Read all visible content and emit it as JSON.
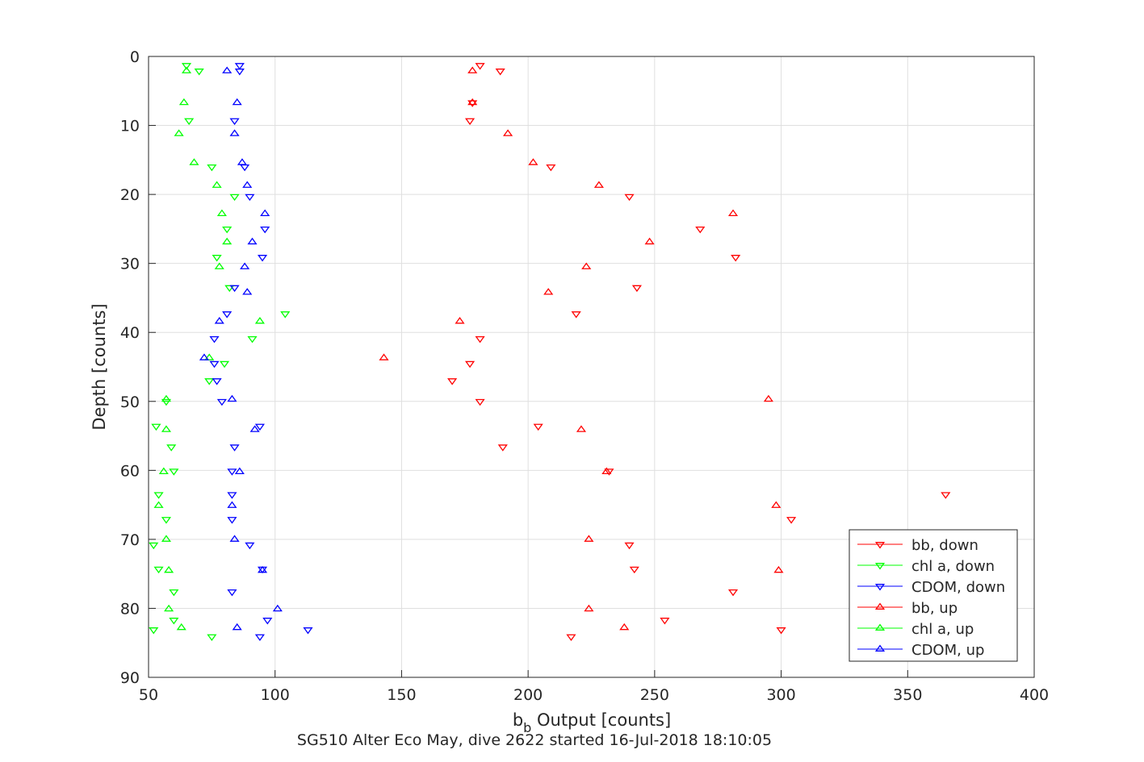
{
  "chart_data": {
    "type": "scatter",
    "xlabel_main": "b",
    "xlabel_sub": "b",
    "xlabel_rest": " Output [counts]",
    "ylabel": "Depth [counts]",
    "subtitle": "SG510 Alter Eco May, dive 2622 started 16-Jul-2018 18:10:05",
    "xlim": [
      50,
      400
    ],
    "ylim": [
      0,
      90
    ],
    "y_reversed": true,
    "xticks": [
      50,
      100,
      150,
      200,
      250,
      300,
      350,
      400
    ],
    "yticks": [
      0,
      10,
      20,
      30,
      40,
      50,
      60,
      70,
      80,
      90
    ],
    "grid": true,
    "legend_position": "bottom-right",
    "series": [
      {
        "name": "bb, down",
        "color": "#ff0000",
        "marker": "triangle-down",
        "points": [
          [
            181,
            1.3
          ],
          [
            189,
            2.1
          ],
          [
            178,
            6.7
          ],
          [
            177,
            9.3
          ],
          [
            209,
            16.0
          ],
          [
            240,
            20.3
          ],
          [
            268,
            25.0
          ],
          [
            282,
            29.1
          ],
          [
            243,
            33.5
          ],
          [
            219,
            37.3
          ],
          [
            181,
            40.9
          ],
          [
            177,
            44.5
          ],
          [
            170,
            47.0
          ],
          [
            181,
            50.0
          ],
          [
            204,
            53.6
          ],
          [
            190,
            56.6
          ],
          [
            232,
            60.1
          ],
          [
            365,
            63.5
          ],
          [
            304,
            67.1
          ],
          [
            240,
            70.8
          ],
          [
            242,
            74.3
          ],
          [
            281,
            77.6
          ],
          [
            254,
            81.7
          ],
          [
            300,
            83.1
          ],
          [
            217,
            84.1
          ]
        ]
      },
      {
        "name": "chl a, down",
        "color": "#00ff00",
        "marker": "triangle-down",
        "points": [
          [
            65,
            1.3
          ],
          [
            70,
            2.1
          ],
          [
            66,
            9.3
          ],
          [
            75,
            16.0
          ],
          [
            84,
            20.3
          ],
          [
            81,
            25.0
          ],
          [
            77,
            29.1
          ],
          [
            82,
            33.5
          ],
          [
            104,
            37.3
          ],
          [
            91,
            40.9
          ],
          [
            80,
            44.5
          ],
          [
            74,
            47.0
          ],
          [
            57,
            50.0
          ],
          [
            53,
            53.6
          ],
          [
            59,
            56.6
          ],
          [
            60,
            60.1
          ],
          [
            54,
            63.5
          ],
          [
            57,
            67.1
          ],
          [
            52,
            70.8
          ],
          [
            54,
            74.3
          ],
          [
            60,
            77.6
          ],
          [
            60,
            81.7
          ],
          [
            52,
            83.1
          ],
          [
            75,
            84.1
          ]
        ]
      },
      {
        "name": "CDOM, down",
        "color": "#0000ff",
        "marker": "triangle-down",
        "points": [
          [
            86,
            1.3
          ],
          [
            86,
            2.1
          ],
          [
            84,
            9.3
          ],
          [
            88,
            16.0
          ],
          [
            90,
            20.3
          ],
          [
            96,
            25.0
          ],
          [
            95,
            29.1
          ],
          [
            84,
            33.5
          ],
          [
            81,
            37.3
          ],
          [
            76,
            40.9
          ],
          [
            76,
            44.5
          ],
          [
            77,
            47.0
          ],
          [
            79,
            50.0
          ],
          [
            94,
            53.6
          ],
          [
            84,
            56.6
          ],
          [
            83,
            60.1
          ],
          [
            83,
            63.5
          ],
          [
            83,
            67.1
          ],
          [
            90,
            70.8
          ],
          [
            95,
            74.3
          ],
          [
            83,
            77.6
          ],
          [
            97,
            81.7
          ],
          [
            113,
            83.1
          ],
          [
            94,
            84.1
          ]
        ]
      },
      {
        "name": "bb, up",
        "color": "#ff0000",
        "marker": "triangle-up",
        "points": [
          [
            178,
            2.1
          ],
          [
            178,
            6.7
          ],
          [
            192,
            11.2
          ],
          [
            202,
            15.4
          ],
          [
            228,
            18.7
          ],
          [
            281,
            22.8
          ],
          [
            248,
            26.9
          ],
          [
            223,
            30.5
          ],
          [
            208,
            34.2
          ],
          [
            173,
            38.4
          ],
          [
            143,
            43.7
          ],
          [
            295,
            49.7
          ],
          [
            221,
            54.1
          ],
          [
            231,
            60.2
          ],
          [
            298,
            65.1
          ],
          [
            224,
            70.0
          ],
          [
            299,
            74.5
          ],
          [
            224,
            80.1
          ],
          [
            238,
            82.8
          ]
        ]
      },
      {
        "name": "chl a, up",
        "color": "#00ff00",
        "marker": "triangle-up",
        "points": [
          [
            65,
            2.1
          ],
          [
            64,
            6.7
          ],
          [
            62,
            11.2
          ],
          [
            68,
            15.4
          ],
          [
            77,
            18.7
          ],
          [
            79,
            22.8
          ],
          [
            81,
            26.9
          ],
          [
            78,
            30.5
          ],
          [
            94,
            38.4
          ],
          [
            74,
            43.7
          ],
          [
            57,
            49.7
          ],
          [
            57,
            54.1
          ],
          [
            56,
            60.2
          ],
          [
            54,
            65.1
          ],
          [
            57,
            70.0
          ],
          [
            58,
            74.5
          ],
          [
            58,
            80.1
          ],
          [
            63,
            82.8
          ]
        ]
      },
      {
        "name": "CDOM, up",
        "color": "#0000ff",
        "marker": "triangle-up",
        "points": [
          [
            81,
            2.1
          ],
          [
            85,
            6.7
          ],
          [
            84,
            11.2
          ],
          [
            87,
            15.4
          ],
          [
            89,
            18.7
          ],
          [
            96,
            22.8
          ],
          [
            91,
            26.9
          ],
          [
            88,
            30.5
          ],
          [
            89,
            34.2
          ],
          [
            78,
            38.4
          ],
          [
            72,
            43.7
          ],
          [
            83,
            49.7
          ],
          [
            92,
            54.1
          ],
          [
            86,
            60.2
          ],
          [
            83,
            65.1
          ],
          [
            84,
            70.0
          ],
          [
            95,
            74.5
          ],
          [
            101,
            80.1
          ],
          [
            85,
            82.8
          ]
        ]
      }
    ]
  }
}
